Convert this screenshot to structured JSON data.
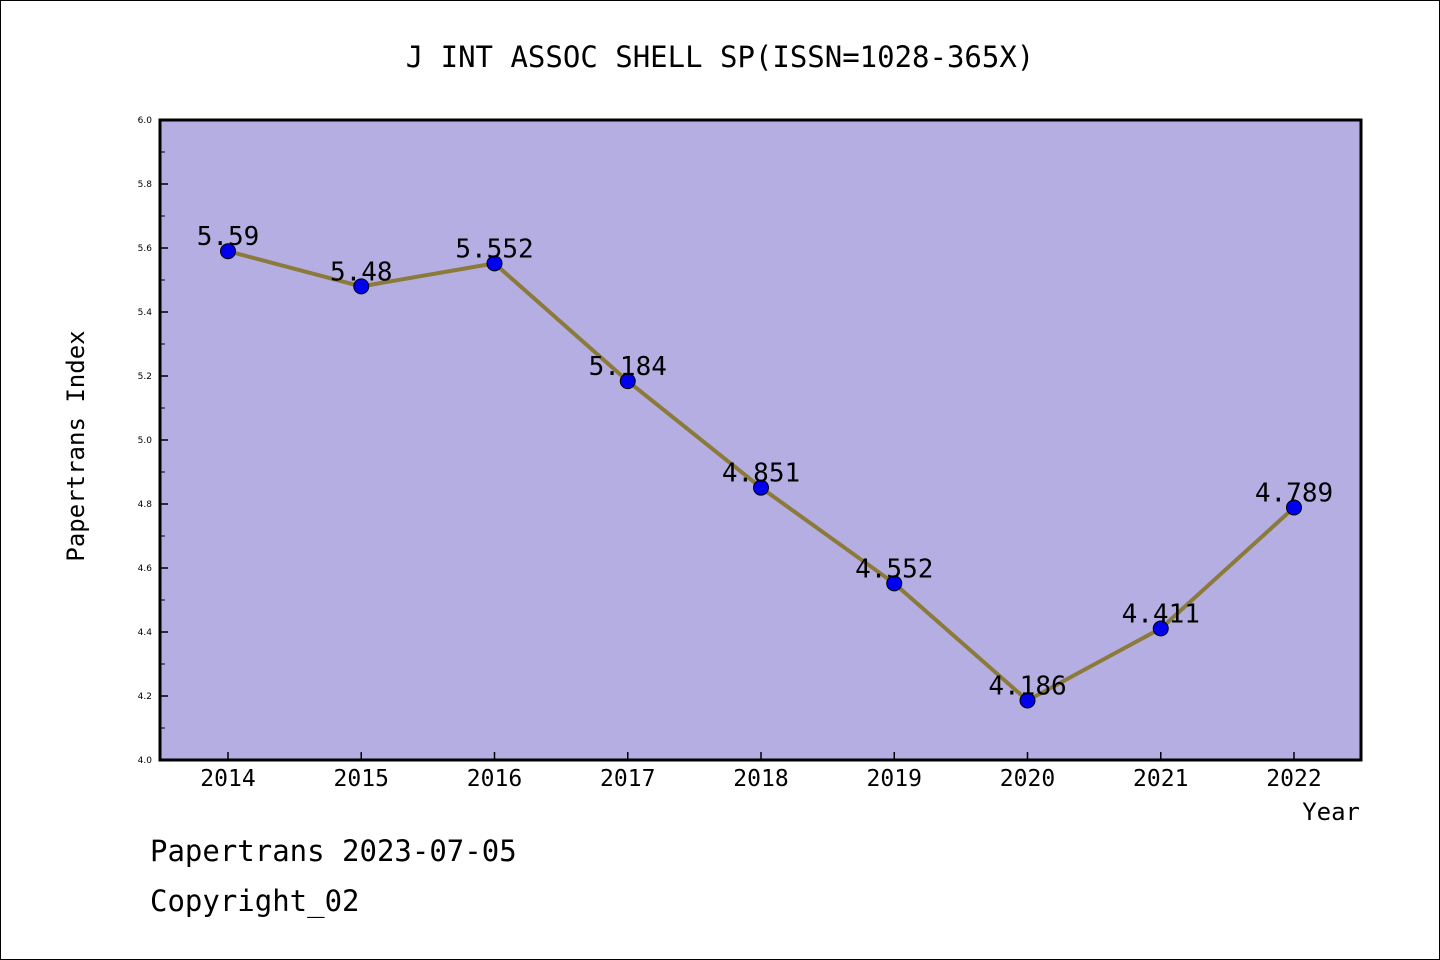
{
  "chart_data": {
    "type": "line",
    "title": "J INT ASSOC SHELL SP(ISSN=1028-365X)",
    "xlabel": "Year",
    "ylabel": "Papertrans Index",
    "categories": [
      "2014",
      "2015",
      "2016",
      "2017",
      "2018",
      "2019",
      "2020",
      "2021",
      "2022"
    ],
    "values": [
      5.59,
      5.48,
      5.552,
      5.184,
      4.851,
      4.552,
      4.186,
      4.411,
      4.789
    ],
    "value_labels": [
      "5.59",
      "5.48",
      "5.552",
      "5.184",
      "4.851",
      "4.552",
      "4.186",
      "4.411",
      "4.789"
    ],
    "ylim": [
      4.0,
      6.0
    ],
    "yticks": [
      "4.0",
      "4.2",
      "4.4",
      "4.6",
      "4.8",
      "5.0",
      "5.2",
      "5.4",
      "5.6",
      "5.8",
      "6.0"
    ],
    "grid": false,
    "colors": {
      "plot_background": "#b4aee2",
      "line": "#8b7a3a",
      "marker": "#0000ee"
    }
  },
  "footer": {
    "line1": "Papertrans 2023-07-05",
    "line2": "Copyright_02"
  }
}
